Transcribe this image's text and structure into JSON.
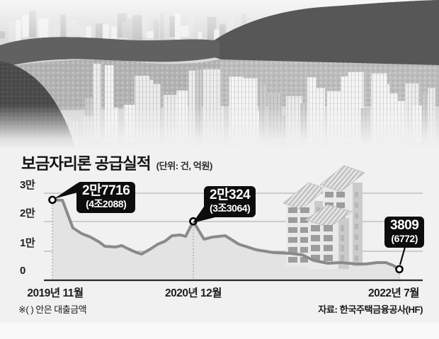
{
  "header": {
    "title": "보금자리론 공급실적",
    "unit_note": "(단위: 건, 억원)"
  },
  "labels": {
    "y_ticks": [
      "3만",
      "2만",
      "1만",
      "0"
    ],
    "x_ticks": [
      "2019년 11월",
      "2020년 12월",
      "2022년 7월"
    ],
    "footnote": "※( ) 안은 대출금액",
    "source": "자료: 한국주택금융공사(HF)"
  },
  "callouts": [
    {
      "value": "2만7716",
      "loan": "(4조2088)"
    },
    {
      "value": "2만324",
      "loan": "(3조3064)"
    },
    {
      "value": "3809",
      "loan": "(6772)"
    }
  ],
  "colors": {
    "callout_bg": "#0d0d0d",
    "line": "#8a8a8a",
    "area": "#e3e3e3",
    "panel": "#f1f1f1",
    "axis": "#2b2b2b",
    "grid": "#a8a8a8"
  },
  "chart_data": {
    "type": "area",
    "title": "보금자리론 공급실적",
    "unit_label": "단위: 건, 억원",
    "xlabel": "",
    "ylabel": "",
    "x_axis": {
      "ticks": [
        "2019년 11월",
        "2020년 12월",
        "2022년 7월"
      ]
    },
    "y_axis": {
      "ticks": [
        "3만",
        "2만",
        "1만",
        "0"
      ],
      "range": [
        0,
        30000
      ]
    },
    "grid": true,
    "labeled_points": [
      {
        "x": "2019년 11월",
        "supply_cases": 27716,
        "loan_amount": "4조2088억원"
      },
      {
        "x": "2020년 12월",
        "supply_cases": 20324,
        "loan_amount": "3조3064억원"
      },
      {
        "x": "2022년 7월",
        "supply_cases": 3809,
        "loan_amount": "6772억원"
      }
    ],
    "marker_indices": [
      0,
      18,
      35
    ],
    "series": [
      {
        "name": "공급실적(건)",
        "points": [
          [
            0.0,
            27716
          ],
          [
            0.029,
            27560
          ],
          [
            0.059,
            18050
          ],
          [
            0.084,
            16100
          ],
          [
            0.11,
            14880
          ],
          [
            0.135,
            13170
          ],
          [
            0.151,
            11710
          ],
          [
            0.182,
            11460
          ],
          [
            0.2,
            11950
          ],
          [
            0.216,
            10980
          ],
          [
            0.243,
            9510
          ],
          [
            0.257,
            9020
          ],
          [
            0.282,
            10730
          ],
          [
            0.304,
            12440
          ],
          [
            0.324,
            13410
          ],
          [
            0.345,
            15370
          ],
          [
            0.369,
            15610
          ],
          [
            0.384,
            15120
          ],
          [
            0.406,
            20324
          ],
          [
            0.437,
            14150
          ],
          [
            0.461,
            14880
          ],
          [
            0.498,
            15370
          ],
          [
            0.537,
            12440
          ],
          [
            0.588,
            10490
          ],
          [
            0.639,
            9510
          ],
          [
            0.686,
            9270
          ],
          [
            0.72,
            8780
          ],
          [
            0.753,
            6830
          ],
          [
            0.794,
            5850
          ],
          [
            0.833,
            6100
          ],
          [
            0.876,
            5610
          ],
          [
            0.904,
            5610
          ],
          [
            0.937,
            6100
          ],
          [
            0.961,
            6100
          ],
          [
            0.982,
            5120
          ],
          [
            1.0,
            3809
          ]
        ]
      }
    ]
  }
}
